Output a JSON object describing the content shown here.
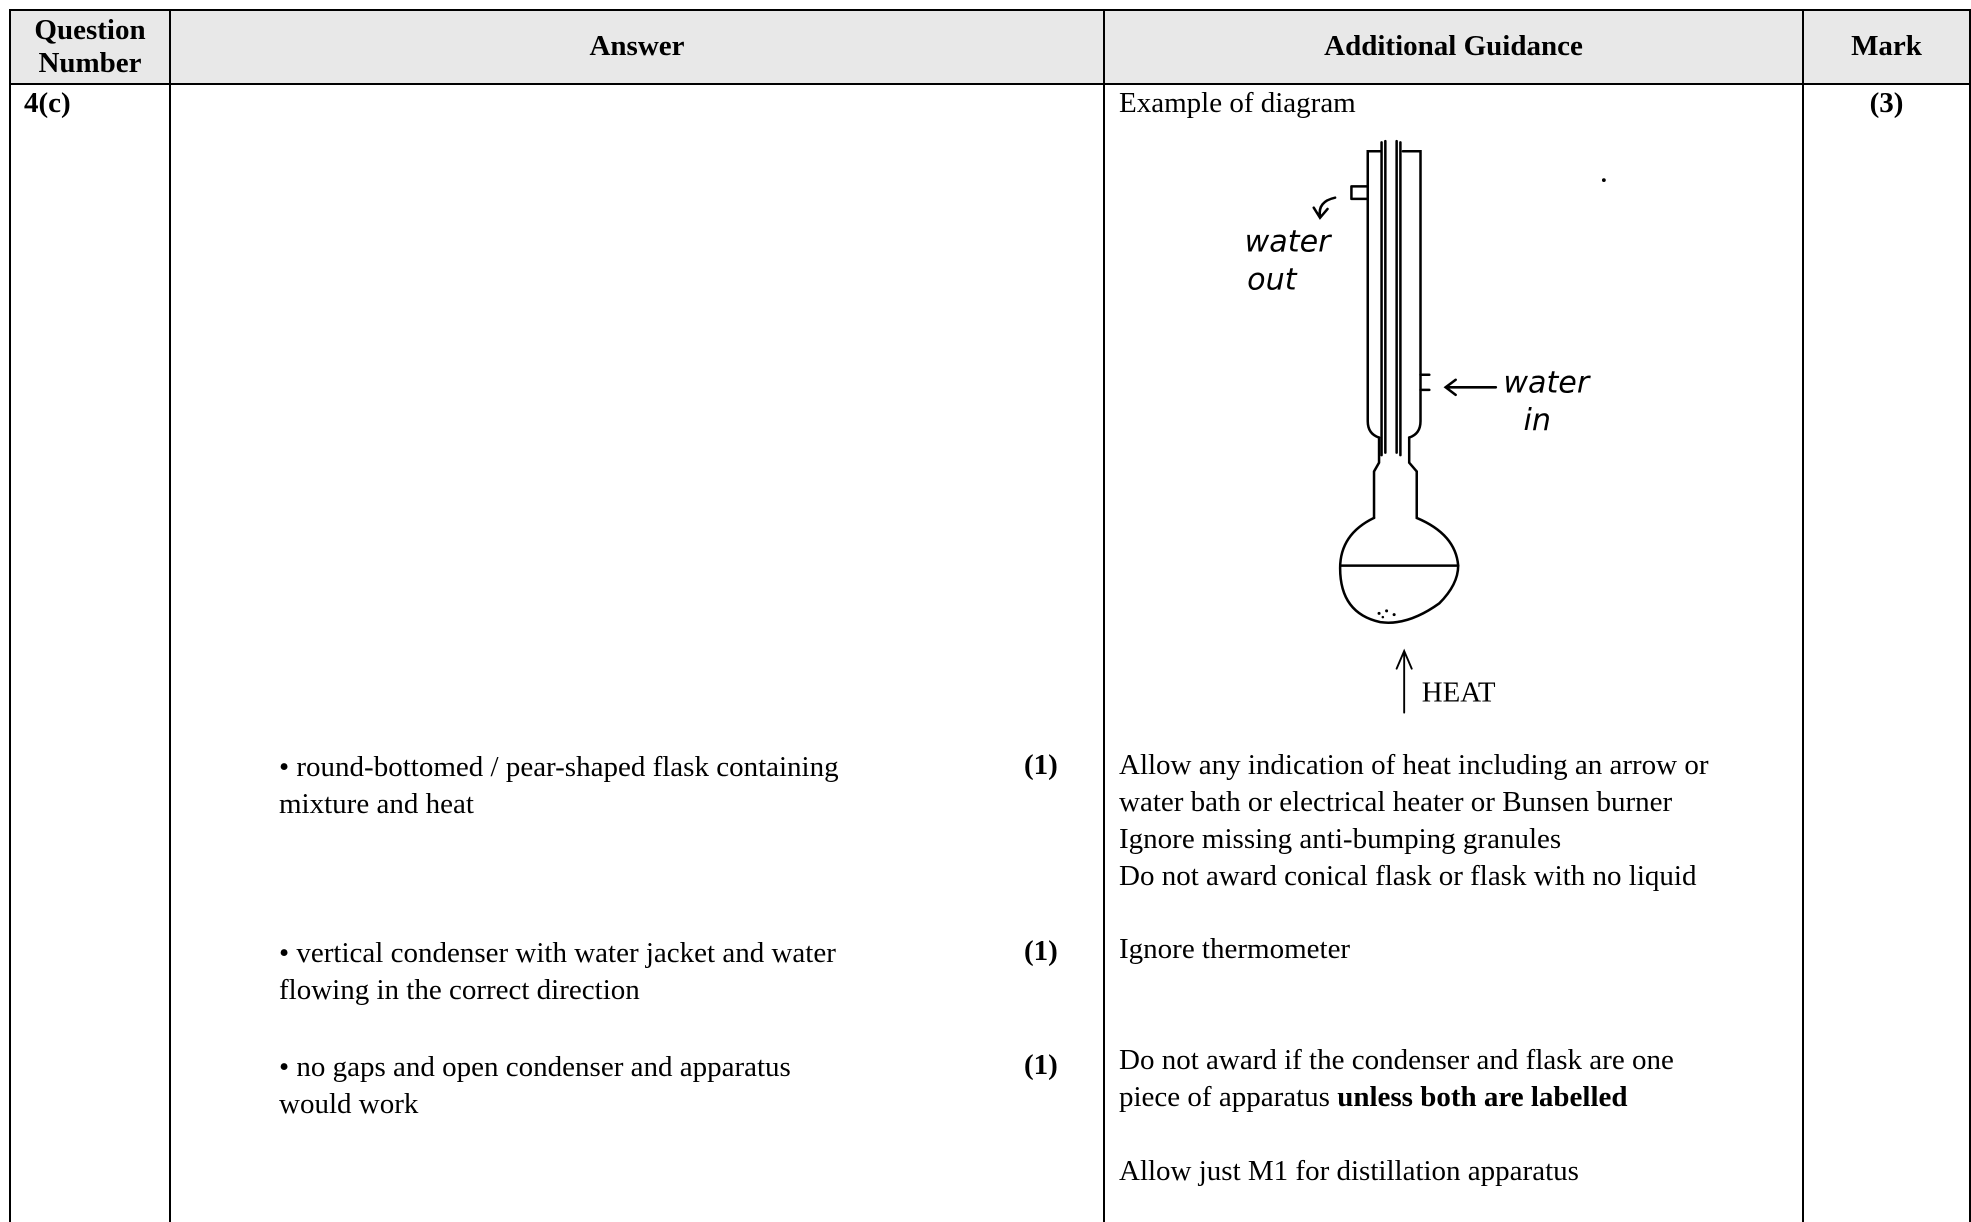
{
  "header": {
    "columns": [
      "Question Number",
      "Answer",
      "Additional Guidance",
      "Mark"
    ]
  },
  "row": {
    "question": "4(c)",
    "mark": "(3)",
    "guidance_intro": "Example of diagram",
    "diagram": {
      "water_out": [
        "water",
        "out"
      ],
      "water_in": [
        "water",
        "in"
      ],
      "heat": "HEAT"
    },
    "points": [
      {
        "answer": [
          "• round-bottomed / pear-shaped flask containing",
          "mixture and heat"
        ],
        "mark": "(1)",
        "guidance": [
          [
            "Allow any indication of heat including an arrow or"
          ],
          [
            "water bath or electrical heater or Bunsen burner"
          ],
          [
            "Ignore missing anti-bumping granules"
          ],
          [
            "Do not award conical flask or flask with no liquid"
          ]
        ]
      },
      {
        "answer": [
          "• vertical condenser with water jacket and water",
          "flowing in the correct direction"
        ],
        "mark": "(1)",
        "guidance": [
          [
            "Ignore thermometer"
          ]
        ]
      },
      {
        "answer": [
          "• no gaps and open condenser and apparatus",
          "would work"
        ],
        "mark": "(1)",
        "guidance": [
          [
            "Do not award if the condenser and flask are one"
          ],
          [
            "piece of apparatus ",
            "unless both are labelled"
          ],
          [],
          [
            "Allow just M1 for distillation apparatus"
          ]
        ]
      }
    ]
  }
}
